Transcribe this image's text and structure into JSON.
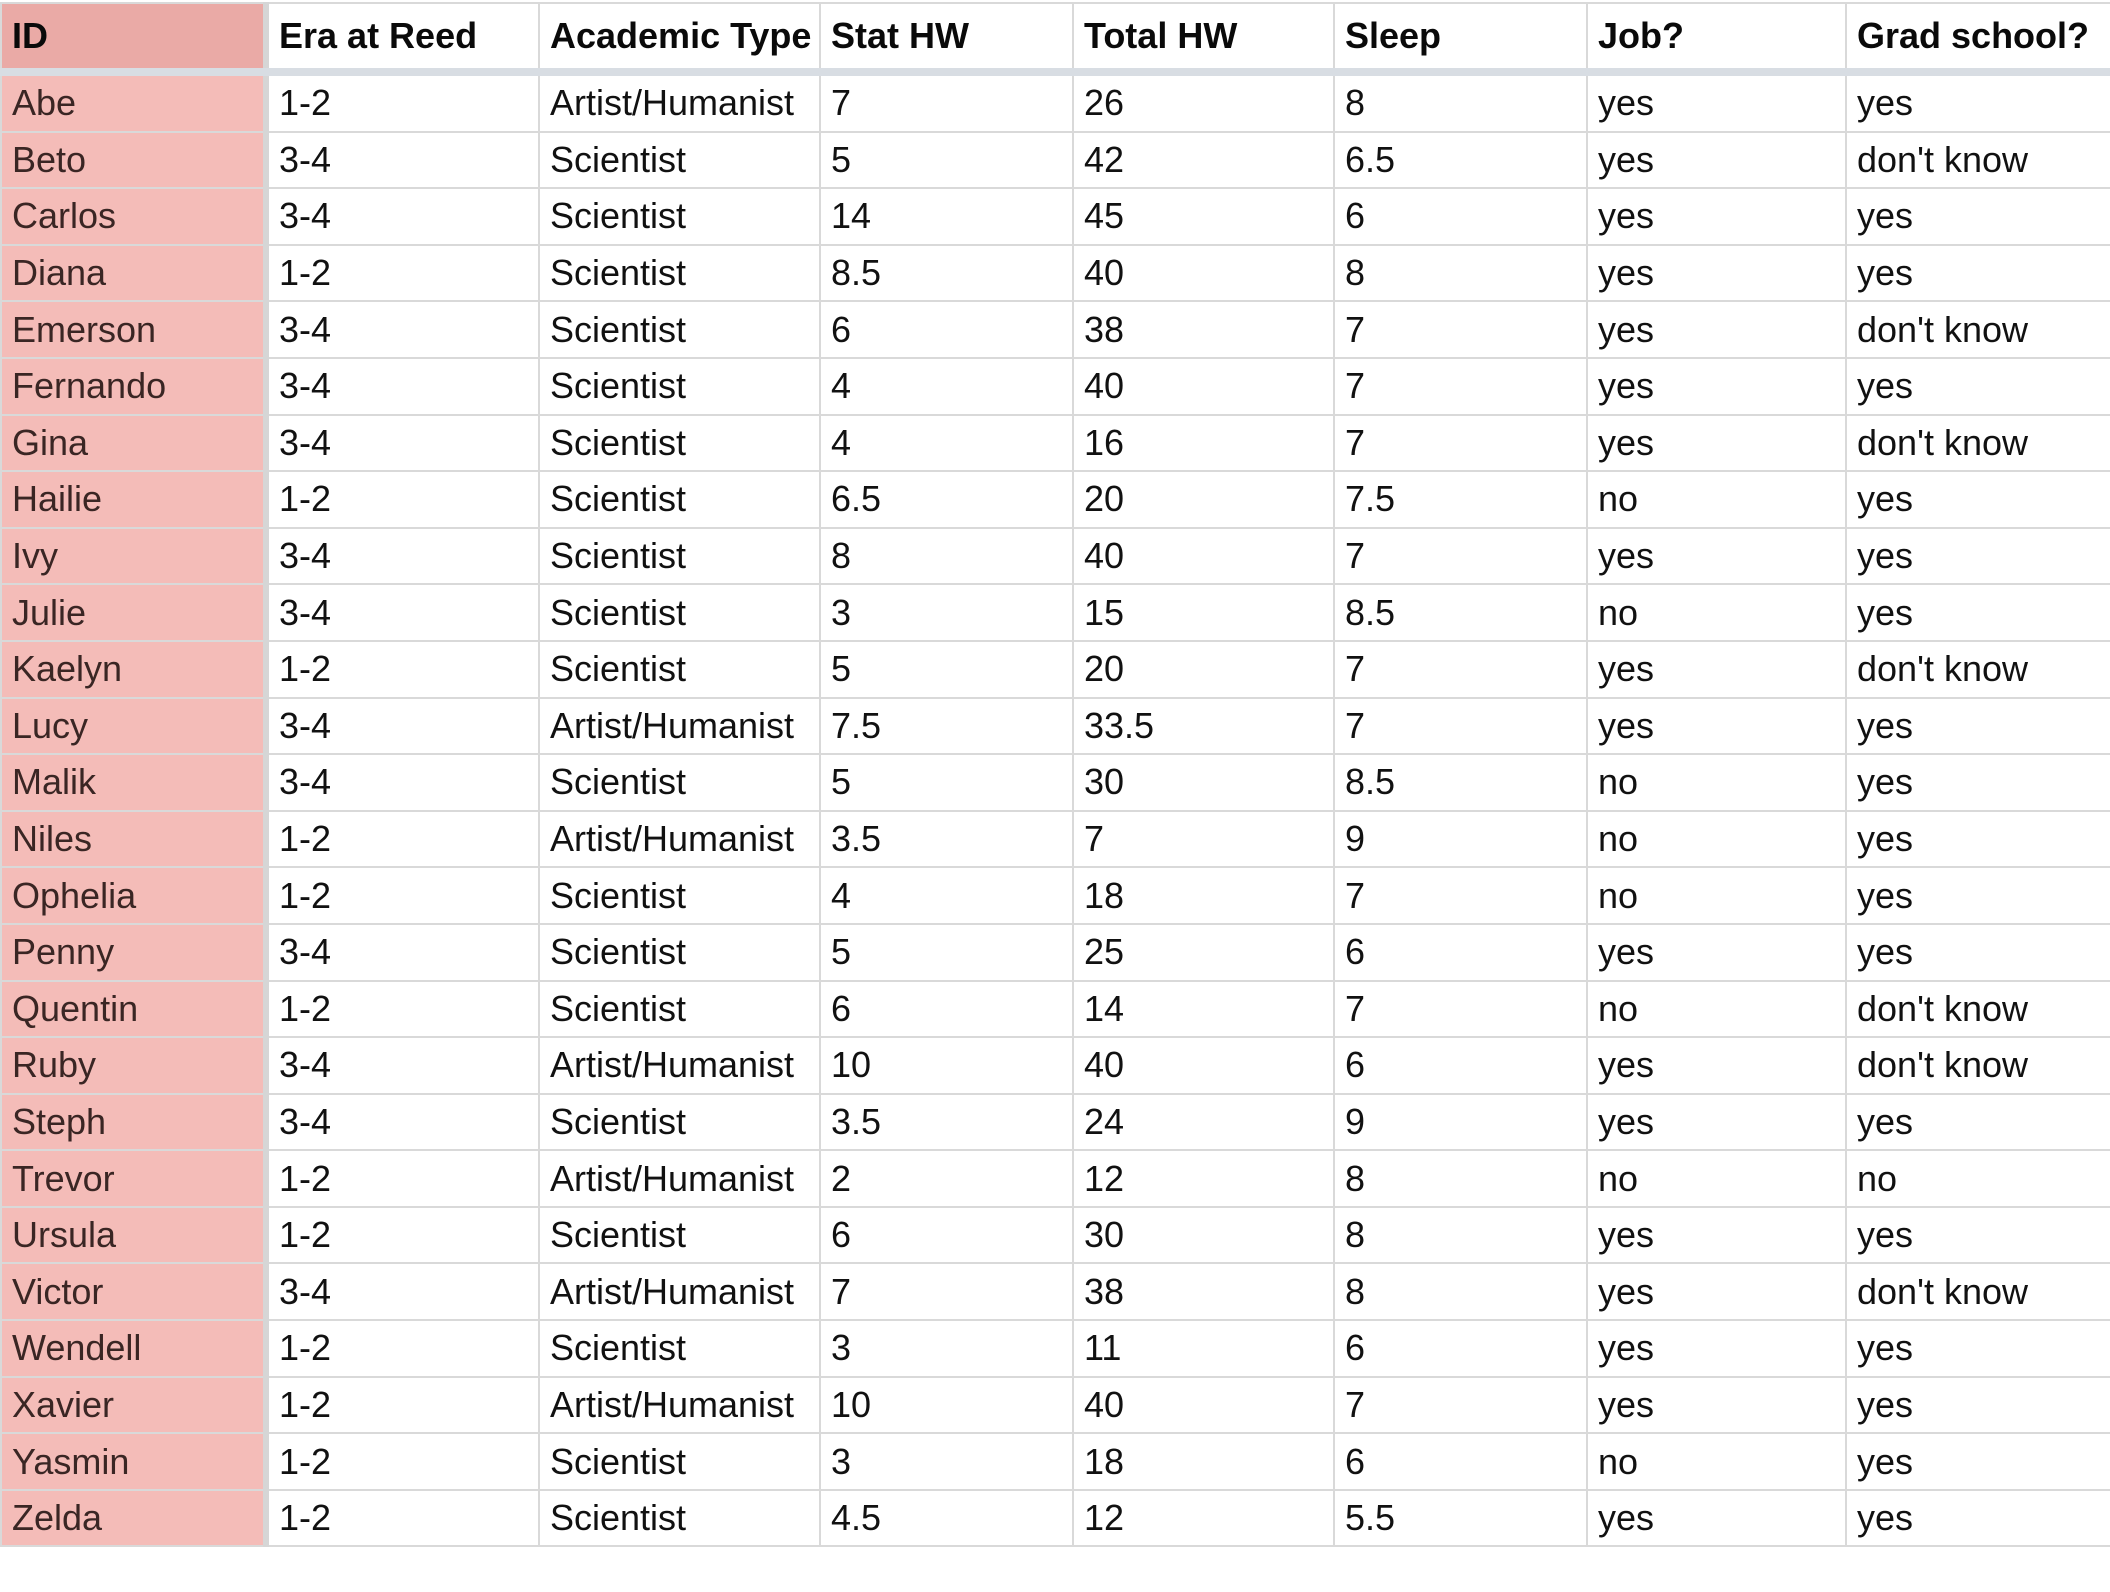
{
  "sheet": {
    "columns": [
      "ID",
      "Era at Reed",
      "Academic Type",
      "Stat HW",
      "Total HW",
      "Sleep",
      "Job?",
      "Grad school?"
    ],
    "rows": [
      [
        "Abe",
        "1-2",
        "Artist/Humanist",
        "7",
        "26",
        "8",
        "yes",
        "yes"
      ],
      [
        "Beto",
        "3-4",
        "Scientist",
        "5",
        "42",
        "6.5",
        "yes",
        "don't know"
      ],
      [
        "Carlos",
        "3-4",
        "Scientist",
        "14",
        "45",
        "6",
        "yes",
        "yes"
      ],
      [
        "Diana",
        "1-2",
        "Scientist",
        "8.5",
        "40",
        "8",
        "yes",
        "yes"
      ],
      [
        "Emerson",
        "3-4",
        "Scientist",
        "6",
        "38",
        "7",
        "yes",
        "don't know"
      ],
      [
        "Fernando",
        "3-4",
        "Scientist",
        "4",
        "40",
        "7",
        "yes",
        "yes"
      ],
      [
        "Gina",
        "3-4",
        "Scientist",
        "4",
        "16",
        "7",
        "yes",
        "don't know"
      ],
      [
        "Hailie",
        "1-2",
        "Scientist",
        "6.5",
        "20",
        "7.5",
        "no",
        "yes"
      ],
      [
        "Ivy",
        "3-4",
        "Scientist",
        "8",
        "40",
        "7",
        "yes",
        "yes"
      ],
      [
        "Julie",
        "3-4",
        "Scientist",
        "3",
        "15",
        "8.5",
        "no",
        "yes"
      ],
      [
        "Kaelyn",
        "1-2",
        "Scientist",
        "5",
        "20",
        "7",
        "yes",
        "don't know"
      ],
      [
        "Lucy",
        "3-4",
        "Artist/Humanist",
        "7.5",
        "33.5",
        "7",
        "yes",
        "yes"
      ],
      [
        "Malik",
        "3-4",
        "Scientist",
        "5",
        "30",
        "8.5",
        "no",
        "yes"
      ],
      [
        "Niles",
        "1-2",
        "Artist/Humanist",
        "3.5",
        "7",
        "9",
        "no",
        "yes"
      ],
      [
        "Ophelia",
        "1-2",
        "Scientist",
        "4",
        "18",
        "7",
        "no",
        "yes"
      ],
      [
        "Penny",
        "3-4",
        "Scientist",
        "5",
        "25",
        "6",
        "yes",
        "yes"
      ],
      [
        "Quentin",
        "1-2",
        "Scientist",
        "6",
        "14",
        "7",
        "no",
        "don't know"
      ],
      [
        "Ruby",
        "3-4",
        "Artist/Humanist",
        "10",
        "40",
        "6",
        "yes",
        "don't know"
      ],
      [
        "Steph",
        "3-4",
        "Scientist",
        "3.5",
        "24",
        "9",
        "yes",
        "yes"
      ],
      [
        "Trevor",
        "1-2",
        "Artist/Humanist",
        "2",
        "12",
        "8",
        "no",
        "no"
      ],
      [
        "Ursula",
        "1-2",
        "Scientist",
        "6",
        "30",
        "8",
        "yes",
        "yes"
      ],
      [
        "Victor",
        "3-4",
        "Artist/Humanist",
        "7",
        "38",
        "8",
        "yes",
        "don't know"
      ],
      [
        "Wendell",
        "1-2",
        "Scientist",
        "3",
        "11",
        "6",
        "yes",
        "yes"
      ],
      [
        "Xavier",
        "1-2",
        "Artist/Humanist",
        "10",
        "40",
        "7",
        "yes",
        "yes"
      ],
      [
        "Yasmin",
        "1-2",
        "Scientist",
        "3",
        "18",
        "6",
        "no",
        "yes"
      ],
      [
        "Zelda",
        "1-2",
        "Scientist",
        "4.5",
        "12",
        "5.5",
        "yes",
        "yes"
      ]
    ]
  },
  "colors": {
    "id_column_fill": "#f4bcb8",
    "id_header_fill": "#eaaaa6",
    "grid_line": "#d9d9d9"
  }
}
